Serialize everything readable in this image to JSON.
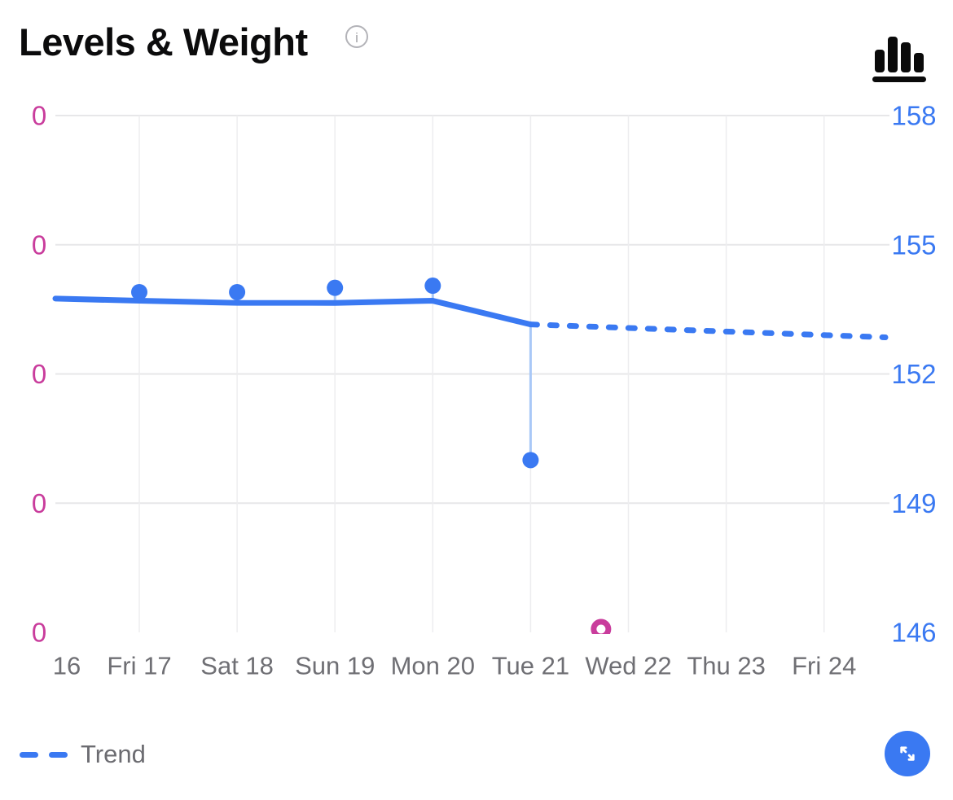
{
  "header": {
    "title": "Levels & Weight",
    "info_icon_glyph": "i"
  },
  "legend": {
    "trend_label": "Trend"
  },
  "colors": {
    "accent_blue": "#3a79f2",
    "accent_pink": "#c93c9c",
    "drop_line_blue": "#a9c8f7",
    "axis_gray": "#6f6f74"
  },
  "chart_data": {
    "type": "line",
    "x_labels": [
      "16",
      "Fri 17",
      "Sat 18",
      "Sun 19",
      "Mon 20",
      "Tue 21",
      "Wed 22",
      "Thu 23",
      "Fri 24"
    ],
    "y_axis_right": {
      "ticks": [
        158,
        155,
        152,
        149,
        146
      ],
      "min": 146,
      "max": 158,
      "color": "#3a79f2"
    },
    "y_axis_left": {
      "ticks": [
        "0",
        "0",
        "0",
        "0",
        "0"
      ],
      "color": "#c93c9c"
    },
    "grid": {
      "horizontal_rows": [
        158,
        155,
        152,
        149
      ],
      "vertical_at": [
        "Fri 17",
        "Sat 18",
        "Sun 19",
        "Mon 20",
        "Tue 21",
        "Wed 22",
        "Thu 23",
        "Fri 24"
      ]
    },
    "series": [
      {
        "name": "weight-actual",
        "type": "scatter",
        "color": "#3a79f2",
        "points": [
          [
            "Fri 17",
            153.9
          ],
          [
            "Sat 18",
            153.9
          ],
          [
            "Sun 19",
            154.0
          ],
          [
            "Mon 20",
            154.05
          ],
          [
            "Tue 21",
            150.0
          ]
        ]
      },
      {
        "name": "weight-trend-solid",
        "type": "line",
        "color": "#3a79f2",
        "points": [
          [
            "plot-left",
            153.75
          ],
          [
            "Fri 17",
            153.7
          ],
          [
            "Sat 18",
            153.65
          ],
          [
            "Sun 19",
            153.65
          ],
          [
            "Mon 20",
            153.7
          ],
          [
            "Tue 21",
            153.15
          ]
        ]
      },
      {
        "name": "weight-trend-projected",
        "type": "dashed",
        "color": "#3a79f2",
        "points": [
          [
            "Tue 21",
            153.15
          ],
          [
            "plot-right",
            152.85
          ]
        ]
      }
    ],
    "drop_lines": [
      {
        "x": "Fri 17",
        "from": 153.9,
        "to": 153.7
      },
      {
        "x": "Sat 18",
        "from": 153.9,
        "to": 153.65
      },
      {
        "x": "Sun 19",
        "from": 154.0,
        "to": 153.65
      },
      {
        "x": "Mon 20",
        "from": 154.05,
        "to": 153.7
      },
      {
        "x": "Tue 21",
        "from": 153.15,
        "to": 150.0
      }
    ],
    "ring_marker": {
      "color": "#c93c9c",
      "between": [
        "Tue 21",
        "Wed 22"
      ],
      "fraction": 0.72,
      "value_axis": "left"
    }
  }
}
